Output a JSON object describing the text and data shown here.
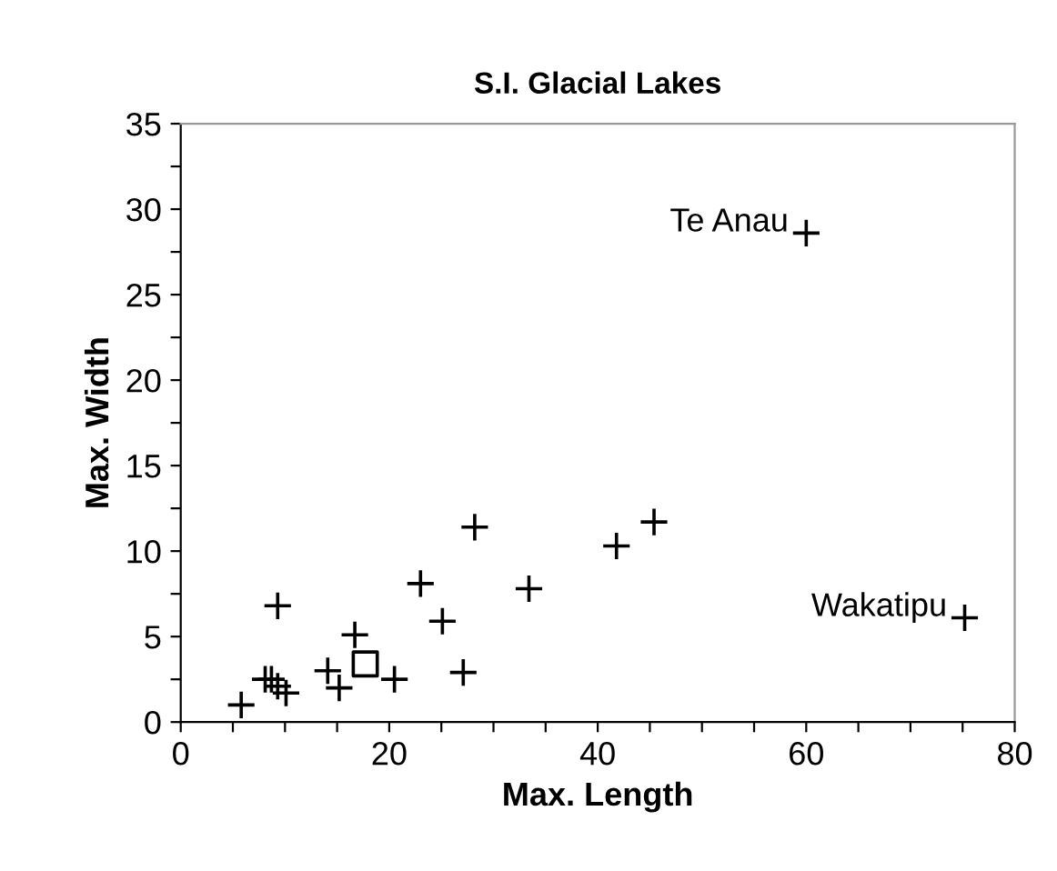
{
  "chart_data": {
    "type": "scatter",
    "title": "S.I. Glacial Lakes",
    "xlabel": "Max. Length",
    "ylabel": "Max. Width",
    "series": [
      {
        "marker": "cross",
        "color": "#000000",
        "x": [
          60.0,
          75.2,
          28.2,
          45.4,
          41.8,
          23.0,
          33.4,
          9.3,
          25.1,
          16.7,
          27.1,
          14.1,
          20.5,
          15.2,
          8.1,
          8.7,
          9.3,
          10.1,
          5.8
        ],
        "values": [
          28.6,
          6.1,
          11.4,
          11.7,
          10.3,
          8.1,
          7.8,
          6.8,
          5.9,
          5.1,
          2.9,
          3.0,
          2.5,
          2.0,
          2.5,
          2.5,
          2.1,
          1.7,
          1.0
        ]
      },
      {
        "marker": "square",
        "color": "#000000",
        "x": [
          17.7
        ],
        "values": [
          3.4
        ]
      }
    ],
    "annotations": [
      {
        "text": "Te Anau",
        "x": 60.0,
        "y": 28.6
      },
      {
        "text": "Wakatipu",
        "x": 75.2,
        "y": 6.1
      }
    ],
    "xlim": [
      0,
      80
    ],
    "ylim": [
      0,
      35
    ],
    "xticks": [
      0,
      {
        "value": 5,
        "label": null
      },
      {
        "value": 10,
        "label": null
      },
      {
        "value": 15,
        "label": null
      },
      20,
      {
        "value": 25,
        "label": null
      },
      {
        "value": 30,
        "label": null
      },
      {
        "value": 35,
        "label": null
      },
      40,
      {
        "value": 45,
        "label": null
      },
      {
        "value": 50,
        "label": null
      },
      {
        "value": 55,
        "label": null
      },
      60,
      {
        "value": 65,
        "label": null
      },
      {
        "value": 70,
        "label": null
      },
      {
        "value": 75,
        "label": null
      },
      80
    ],
    "yticks": [
      0,
      {
        "value": 2.5,
        "label": null
      },
      5,
      {
        "value": 7.5,
        "label": null
      },
      10,
      {
        "value": 12.5,
        "label": null
      },
      15,
      {
        "value": 17.5,
        "label": null
      },
      20,
      {
        "value": 22.5,
        "label": null
      },
      25,
      {
        "value": 27.5,
        "label": null
      },
      30,
      {
        "value": 32.5,
        "label": null
      },
      35
    ],
    "grid": false,
    "legend": false
  }
}
